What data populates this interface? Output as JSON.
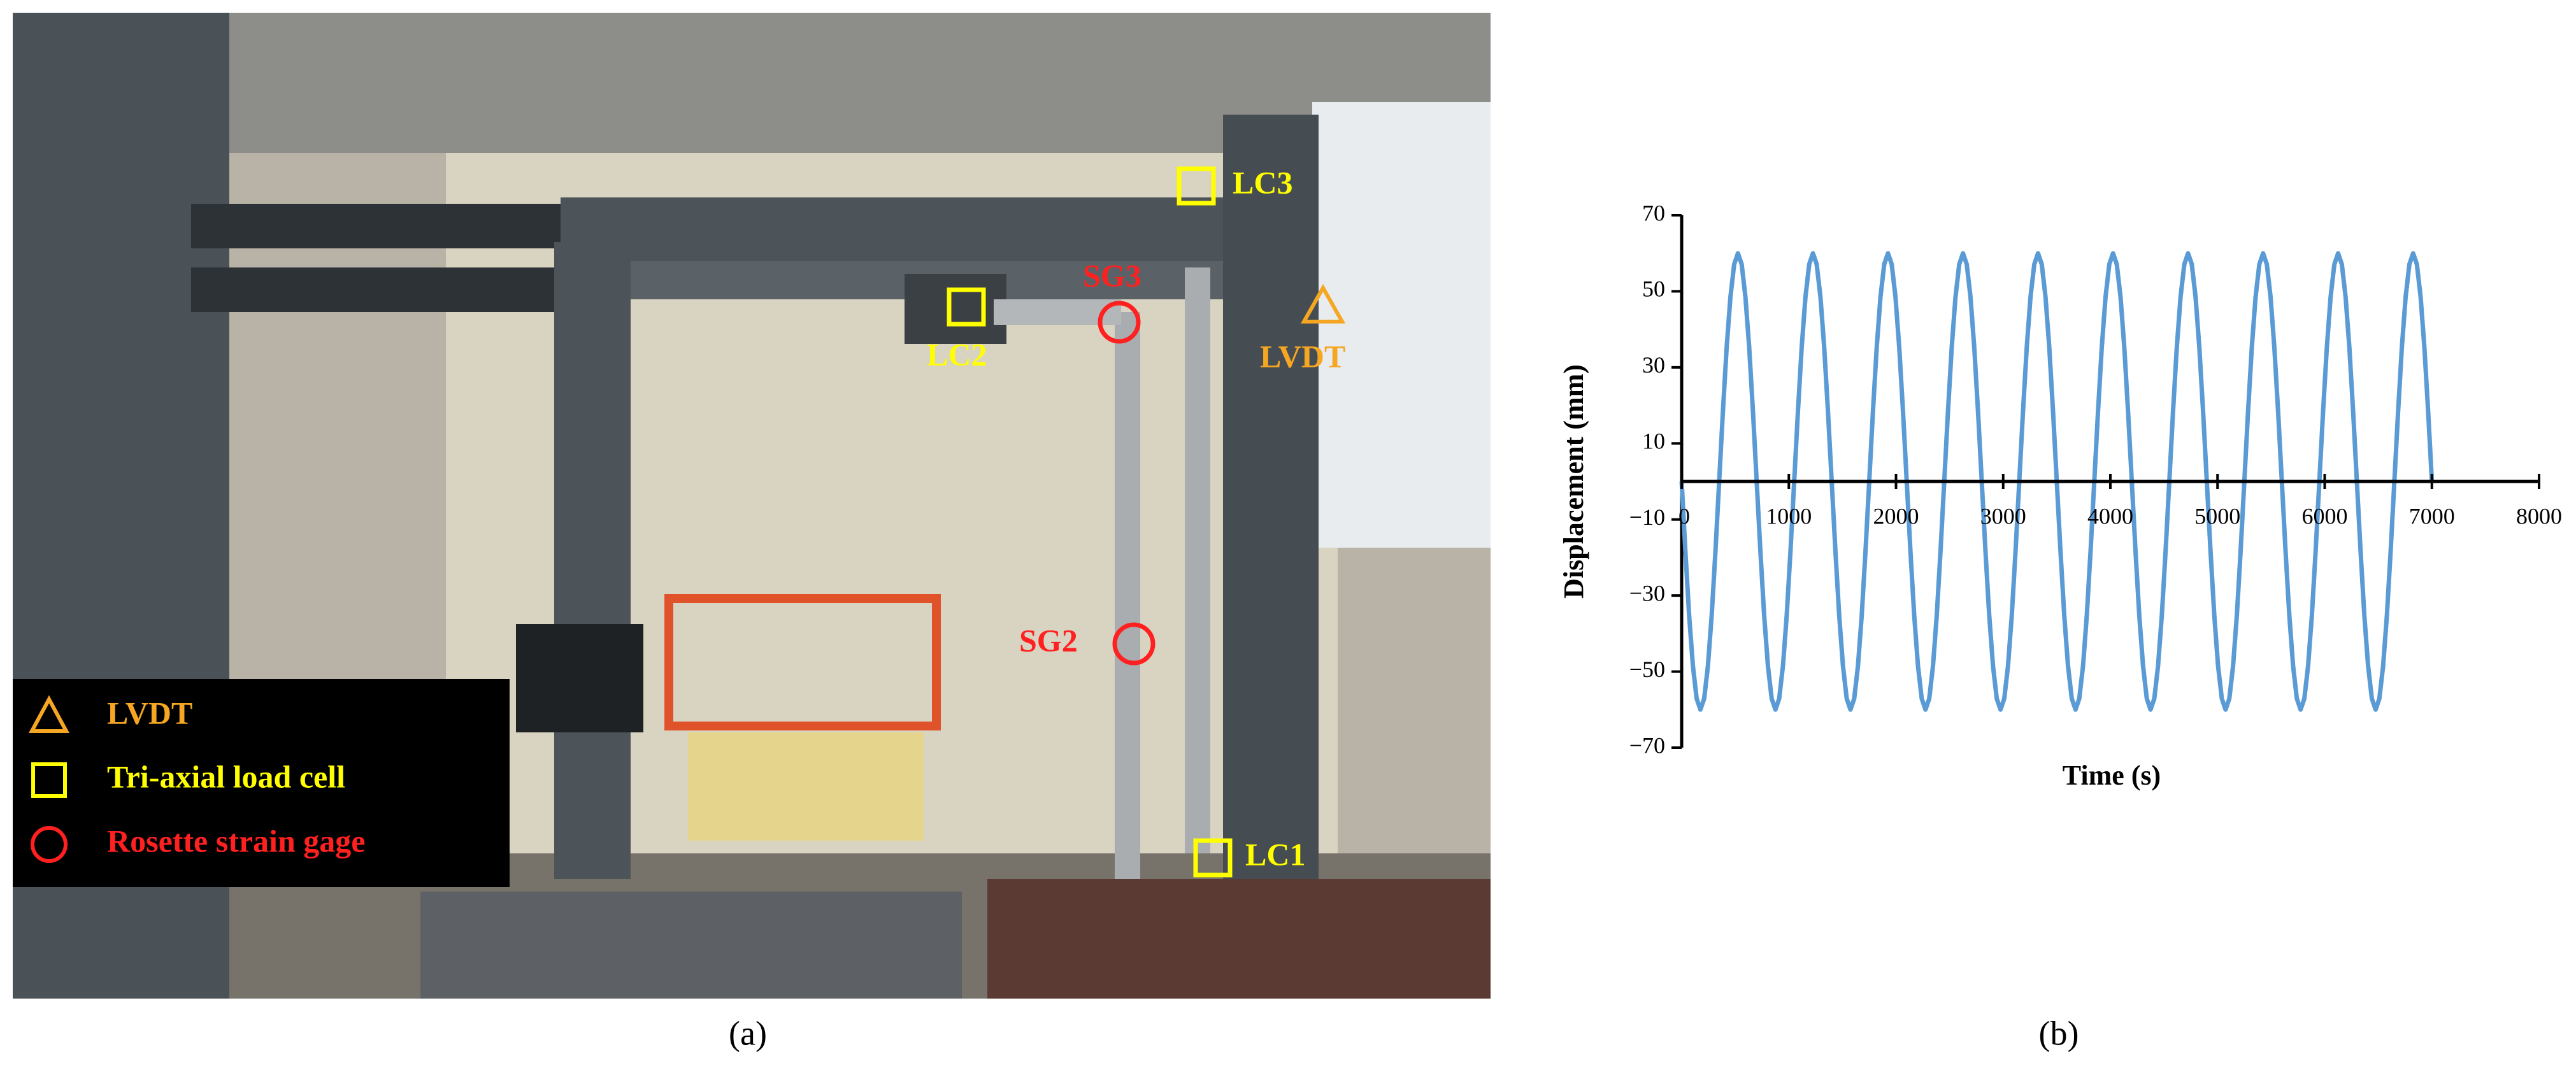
{
  "photo": {
    "labels": {
      "lc1": "LC1",
      "lc2": "LC2",
      "lc3": "LC3",
      "sg2": "SG2",
      "sg3": "SG3",
      "lvdt": "LVDT"
    },
    "legend": [
      "LVDT",
      "Tri-axial load cell",
      "Rosette strain gage"
    ]
  },
  "captions": {
    "a": "(a)",
    "b": "(b)"
  },
  "chart_data": {
    "type": "line",
    "xlabel": "Time (s)",
    "ylabel": "Displacement (mm)",
    "color": "#5b9bd5",
    "xlim": [
      0,
      8000
    ],
    "xticks": [
      0,
      1000,
      2000,
      3000,
      4000,
      5000,
      6000,
      7000,
      8000
    ],
    "ylim": [
      -70,
      70
    ],
    "yticks": [
      {
        "value": -70,
        "label": "−70"
      },
      {
        "value": -50,
        "label": "−50"
      },
      {
        "value": -30,
        "label": "−30"
      },
      {
        "value": -10,
        "label": "−10"
      },
      10,
      30,
      50,
      70
    ],
    "x": [
      0,
      35,
      70,
      105,
      140,
      175,
      210,
      245,
      280,
      315,
      350,
      385,
      420,
      455,
      490,
      525,
      560,
      595,
      630,
      665,
      700,
      735,
      770,
      805,
      840,
      875,
      910,
      945,
      980,
      1015,
      1050,
      1085,
      1120,
      1155,
      1190,
      1225,
      1260,
      1295,
      1330,
      1365,
      1400,
      1435,
      1470,
      1505,
      1540,
      1575,
      1610,
      1645,
      1680,
      1715,
      1750,
      1785,
      1820,
      1855,
      1890,
      1925,
      1960,
      1995,
      2030,
      2065,
      2100,
      2135,
      2170,
      2205,
      2240,
      2275,
      2310,
      2345,
      2380,
      2415,
      2450,
      2485,
      2520,
      2555,
      2590,
      2625,
      2660,
      2695,
      2730,
      2765,
      2800,
      2835,
      2870,
      2905,
      2940,
      2975,
      3010,
      3045,
      3080,
      3115,
      3150,
      3185,
      3220,
      3255,
      3290,
      3325,
      3360,
      3395,
      3430,
      3465,
      3500,
      3535,
      3570,
      3605,
      3640,
      3675,
      3710,
      3745,
      3780,
      3815,
      3850,
      3885,
      3920,
      3955,
      3990,
      4025,
      4060,
      4095,
      4130,
      4165,
      4200,
      4235,
      4270,
      4305,
      4340,
      4375,
      4410,
      4445,
      4480,
      4515,
      4550,
      4585,
      4620,
      4655,
      4690,
      4725,
      4760,
      4795,
      4830,
      4865,
      4900,
      4935,
      4970,
      5005,
      5040,
      5075,
      5110,
      5145,
      5180,
      5215,
      5250,
      5285,
      5320,
      5355,
      5390,
      5425,
      5460,
      5495,
      5530,
      5565,
      5600,
      5635,
      5670,
      5705,
      5740,
      5775,
      5810,
      5845,
      5880,
      5915,
      5950,
      5985,
      6020,
      6055,
      6090,
      6125,
      6160,
      6195,
      6230,
      6265,
      6300,
      6335,
      6370,
      6405,
      6440,
      6475,
      6510,
      6545,
      6580,
      6615,
      6650,
      6685,
      6720,
      6755,
      6790,
      6825,
      6860,
      6895,
      6930,
      6965,
      7000
    ],
    "values": [
      0,
      -18.5,
      -35.3,
      -48.5,
      -57.1,
      -60,
      -57.1,
      -48.5,
      -35.3,
      -18.5,
      0,
      18.5,
      35.3,
      48.5,
      57.1,
      60,
      57.1,
      48.5,
      35.3,
      18.5,
      0,
      -18.5,
      -35.3,
      -48.5,
      -57.1,
      -60,
      -57.1,
      -48.5,
      -35.3,
      -18.5,
      0,
      18.5,
      35.3,
      48.5,
      57.1,
      60,
      57.1,
      48.5,
      35.3,
      18.5,
      0,
      -18.5,
      -35.3,
      -48.5,
      -57.1,
      -60,
      -57.1,
      -48.5,
      -35.3,
      -18.5,
      0,
      18.5,
      35.3,
      48.5,
      57.1,
      60,
      57.1,
      48.5,
      35.3,
      18.5,
      0,
      -18.5,
      -35.3,
      -48.5,
      -57.1,
      -60,
      -57.1,
      -48.5,
      -35.3,
      -18.5,
      0,
      18.5,
      35.3,
      48.5,
      57.1,
      60,
      57.1,
      48.5,
      35.3,
      18.5,
      0,
      -18.5,
      -35.3,
      -48.5,
      -57.1,
      -60,
      -57.1,
      -48.5,
      -35.3,
      -18.5,
      0,
      18.5,
      35.3,
      48.5,
      57.1,
      60,
      57.1,
      48.5,
      35.3,
      18.5,
      0,
      -18.5,
      -35.3,
      -48.5,
      -57.1,
      -60,
      -57.1,
      -48.5,
      -35.3,
      -18.5,
      0,
      18.5,
      35.3,
      48.5,
      57.1,
      60,
      57.1,
      48.5,
      35.3,
      18.5,
      0,
      -18.5,
      -35.3,
      -48.5,
      -57.1,
      -60,
      -57.1,
      -48.5,
      -35.3,
      -18.5,
      0,
      18.5,
      35.3,
      48.5,
      57.1,
      60,
      57.1,
      48.5,
      35.3,
      18.5,
      0,
      -18.5,
      -35.3,
      -48.5,
      -57.1,
      -60,
      -57.1,
      -48.5,
      -35.3,
      -18.5,
      0,
      18.5,
      35.3,
      48.5,
      57.1,
      60,
      57.1,
      48.5,
      35.3,
      18.5,
      0,
      -18.5,
      -35.3,
      -48.5,
      -57.1,
      -60,
      -57.1,
      -48.5,
      -35.3,
      -18.5,
      0,
      18.5,
      35.3,
      48.5,
      57.1,
      60,
      57.1,
      48.5,
      35.3,
      18.5,
      0,
      -18.5,
      -35.3,
      -48.5,
      -57.1,
      -60,
      -57.1,
      -48.5,
      -35.3,
      -18.5,
      0,
      18.5,
      35.3,
      48.5,
      57.1,
      60,
      57.1,
      48.5,
      35.3,
      18.5,
      0
    ]
  }
}
